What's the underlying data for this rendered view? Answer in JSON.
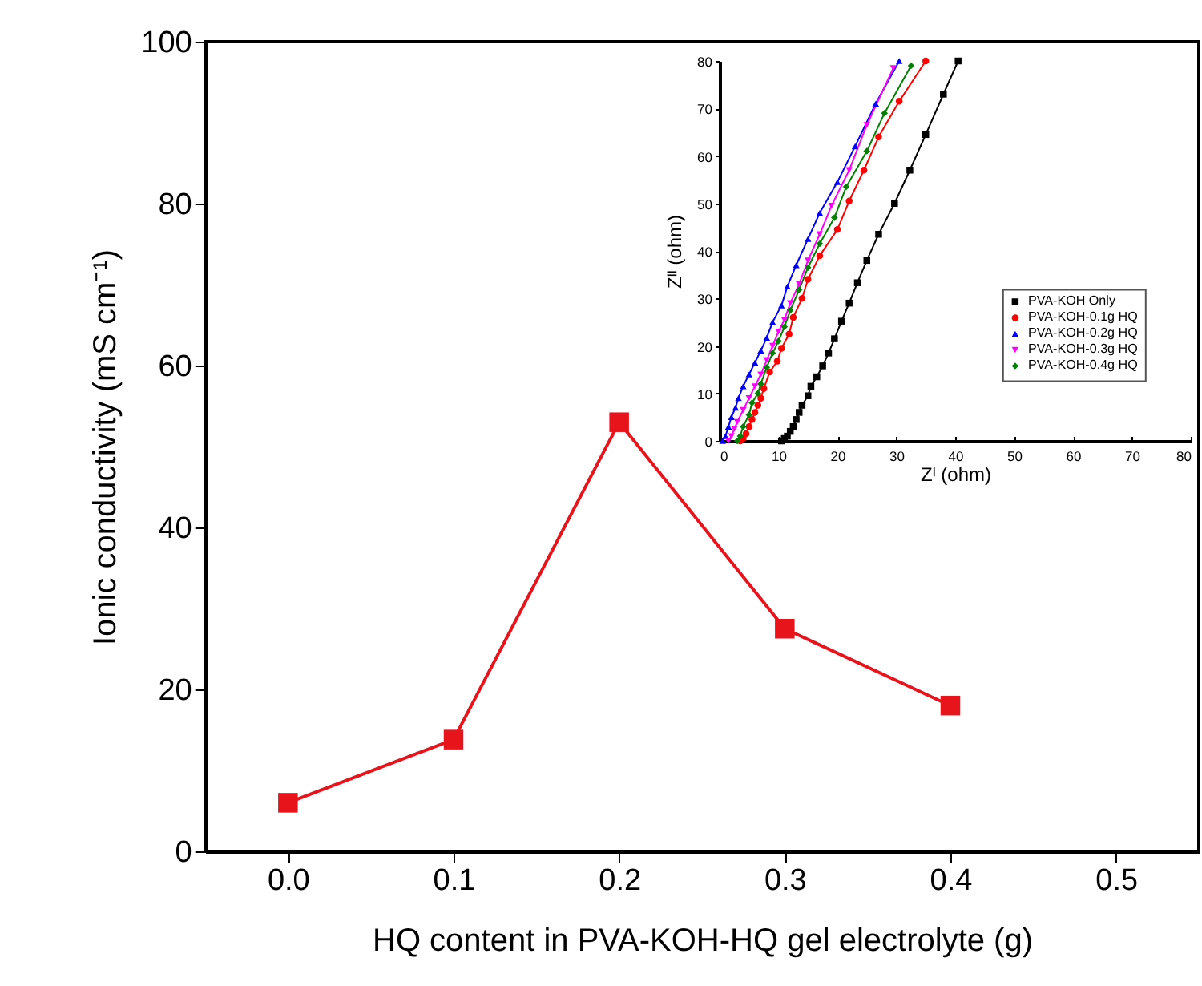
{
  "chart_data": [
    {
      "type": "line",
      "xlabel": "HQ content in PVA-KOH-HQ gel electrolyte (g)",
      "ylabel": "Ionic conductivity (mS cm⁻¹)",
      "x": [
        0.0,
        0.1,
        0.2,
        0.3,
        0.4
      ],
      "values": [
        6,
        13.8,
        53,
        27.5,
        18
      ],
      "color": "#e8141c",
      "marker": "square",
      "xlim": [
        -0.05,
        0.55
      ],
      "xticks": [
        {
          "value": 0.0,
          "label": "0.0"
        },
        0.1,
        0.2,
        0.3,
        0.4,
        0.5
      ],
      "ylim": [
        0,
        100
      ],
      "yticks": [
        0,
        20,
        40,
        60,
        80,
        100
      ],
      "grid": false,
      "legend": false
    },
    {
      "type": "line",
      "xlabel": "Zᴵ (ohm)",
      "ylabel": "Zᴵᴵ (ohm)",
      "xlim": [
        0,
        80
      ],
      "xticks": [
        0,
        10,
        20,
        30,
        40,
        50,
        60,
        70,
        80
      ],
      "ylim": [
        0,
        80
      ],
      "yticks": [
        0,
        10,
        20,
        30,
        40,
        50,
        60,
        70,
        80
      ],
      "grid": false,
      "legend": "bottom right",
      "series": [
        {
          "name": "PVA-KOH Only",
          "color": "#000000",
          "marker": "square",
          "x": [
            10.5,
            11,
            11.5,
            12,
            12.5,
            13,
            13.5,
            14,
            15,
            15.5,
            16.5,
            17.5,
            18.5,
            19.5,
            20.7,
            22,
            23.4,
            25,
            27,
            29.7,
            32.3,
            35,
            38,
            40.5
          ],
          "values": [
            0,
            0.5,
            1,
            2,
            3,
            4.5,
            6,
            7.5,
            9.5,
            11.5,
            13.5,
            15.8,
            18.5,
            21.5,
            25.2,
            29,
            33.3,
            38,
            43.5,
            50,
            57,
            64.5,
            73,
            80
          ]
        },
        {
          "name": "PVA-KOH-0.1g HQ",
          "color": "#ff0000",
          "marker": "circle",
          "x": [
            3.5,
            4,
            4.5,
            5,
            5.5,
            6,
            6.5,
            7,
            7.5,
            8.5,
            9.8,
            10.5,
            11.8,
            12.5,
            14,
            15,
            17,
            20,
            22,
            24.5,
            27,
            30.5,
            35
          ],
          "values": [
            0,
            0.5,
            1.5,
            3,
            4.5,
            6,
            7.5,
            9,
            11,
            14.5,
            16.8,
            19.5,
            22.5,
            26,
            30,
            34,
            39,
            44.5,
            50.5,
            57,
            64,
            71.5,
            80
          ]
        },
        {
          "name": "PVA-KOH-0.2g HQ",
          "color": "#0000ff",
          "marker": "triangle",
          "x": [
            0.5,
            1,
            1.5,
            2,
            2.7,
            3.2,
            4,
            5,
            6,
            7,
            8,
            9,
            10.5,
            11.5,
            13,
            15,
            17,
            20,
            23,
            26.5,
            30.5
          ],
          "values": [
            0,
            1,
            3,
            5,
            7,
            9,
            11.5,
            14,
            16.5,
            19,
            21.7,
            25,
            28.5,
            32.5,
            37,
            42.5,
            48,
            54.5,
            62,
            71,
            80
          ]
        },
        {
          "name": "PVA-KOH-0.3g HQ",
          "color": "#ff00ff",
          "marker": "triangle-down",
          "x": [
            1.5,
            2,
            2.5,
            3,
            4,
            5,
            6,
            7,
            8,
            9,
            10,
            11,
            12,
            13.5,
            15,
            17,
            19,
            22,
            25,
            29.5
          ],
          "values": [
            0,
            1,
            2.5,
            4,
            6.5,
            9,
            11.5,
            14,
            17,
            20,
            23,
            25.5,
            29,
            33,
            38,
            43.5,
            49.5,
            57,
            66.5,
            78.5
          ]
        },
        {
          "name": "PVA-KOH-0.4g HQ",
          "color": "#008000",
          "marker": "diamond",
          "x": [
            3,
            3.5,
            4,
            5,
            5.5,
            6.5,
            7,
            8,
            9,
            10,
            11,
            12,
            13.5,
            15,
            17,
            19.5,
            21.5,
            25,
            28,
            32.5
          ],
          "values": [
            0,
            1,
            3,
            5.5,
            8,
            10,
            12,
            15.5,
            18.5,
            21,
            24,
            27.5,
            31.8,
            36.5,
            41.5,
            47,
            53.5,
            61,
            69,
            79
          ]
        }
      ]
    }
  ]
}
